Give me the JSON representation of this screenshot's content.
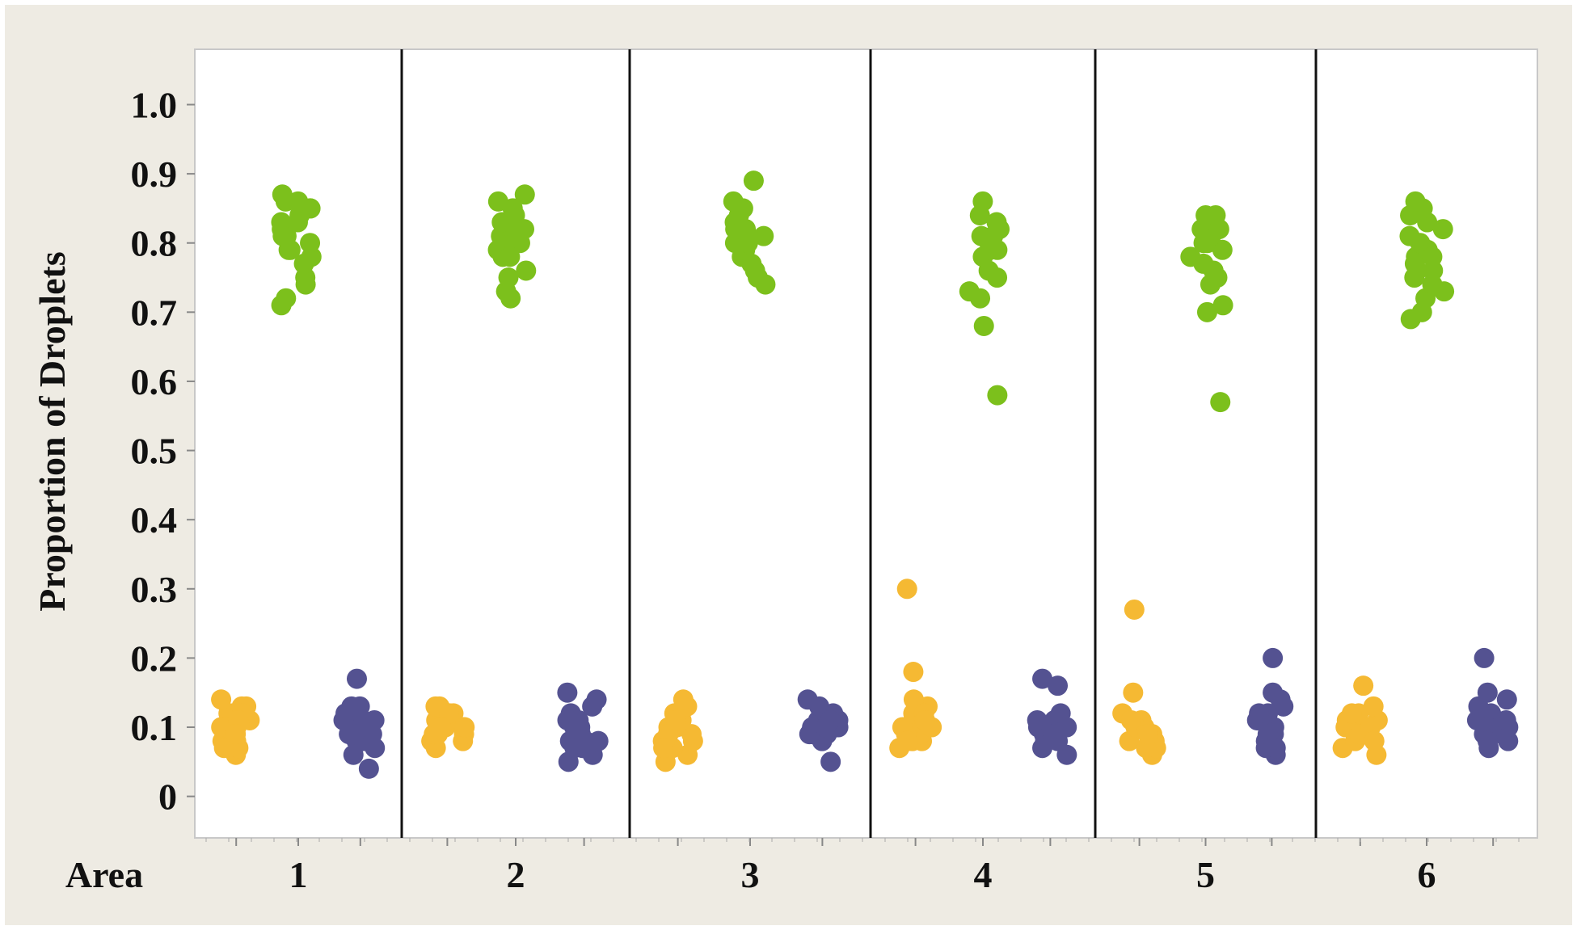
{
  "chart_data": {
    "type": "scatter",
    "title": "",
    "ylabel": "Proportion of Droplets",
    "xlabel": "Area",
    "ylim": [
      -0.06,
      1.08
    ],
    "yticks": [
      0,
      0.1,
      0.2,
      0.3,
      0.4,
      0.5,
      0.6,
      0.7,
      0.8,
      0.9,
      1.0
    ],
    "ytick_labels": [
      "0",
      "0.1",
      "0.2",
      "0.3",
      "0.4",
      "0.5",
      "0.6",
      "0.7",
      "0.8",
      "0.9",
      "1.0"
    ],
    "grid": false,
    "legend": "none",
    "categories": [
      "1",
      "2",
      "3",
      "4",
      "5",
      "6"
    ],
    "groups_per_category": 3,
    "series_colors": [
      "#f5b933",
      "#7cc01c",
      "#545291"
    ],
    "series": [
      {
        "values": [
          [
            0.06,
            0.07,
            0.08,
            0.09,
            0.09,
            0.1,
            0.1,
            0.11,
            0.11,
            0.12,
            0.12,
            0.13,
            0.13,
            0.14,
            0.08,
            0.1,
            0.12,
            0.07,
            0.11,
            0.09
          ],
          [
            0.07,
            0.08,
            0.08,
            0.09,
            0.09,
            0.1,
            0.1,
            0.11,
            0.11,
            0.12,
            0.12,
            0.13,
            0.13,
            0.1,
            0.11,
            0.09,
            0.12,
            0.1
          ],
          [
            0.05,
            0.06,
            0.07,
            0.07,
            0.08,
            0.08,
            0.09,
            0.09,
            0.1,
            0.1,
            0.11,
            0.12,
            0.13,
            0.14,
            0.08,
            0.09,
            0.11,
            0.07
          ],
          [
            0.07,
            0.08,
            0.08,
            0.09,
            0.1,
            0.1,
            0.11,
            0.11,
            0.12,
            0.13,
            0.14,
            0.18,
            0.3,
            0.09,
            0.12,
            0.1,
            0.08,
            0.11
          ],
          [
            0.06,
            0.07,
            0.08,
            0.09,
            0.09,
            0.1,
            0.11,
            0.12,
            0.15,
            0.27,
            0.08,
            0.1,
            0.07,
            0.09,
            0.11
          ],
          [
            0.06,
            0.07,
            0.08,
            0.09,
            0.1,
            0.1,
            0.11,
            0.12,
            0.13,
            0.16,
            0.09,
            0.11,
            0.1,
            0.08,
            0.12
          ]
        ]
      },
      {
        "values": [
          [
            0.71,
            0.72,
            0.74,
            0.75,
            0.77,
            0.78,
            0.79,
            0.8,
            0.81,
            0.82,
            0.82,
            0.83,
            0.84,
            0.85,
            0.85,
            0.86,
            0.86,
            0.87,
            0.79,
            0.83,
            0.81
          ],
          [
            0.72,
            0.73,
            0.75,
            0.76,
            0.78,
            0.79,
            0.79,
            0.8,
            0.81,
            0.82,
            0.83,
            0.84,
            0.85,
            0.86,
            0.87,
            0.8,
            0.82,
            0.78
          ],
          [
            0.74,
            0.75,
            0.76,
            0.78,
            0.79,
            0.8,
            0.81,
            0.82,
            0.83,
            0.84,
            0.85,
            0.86,
            0.89,
            0.8,
            0.82,
            0.77
          ],
          [
            0.58,
            0.68,
            0.72,
            0.73,
            0.75,
            0.76,
            0.78,
            0.79,
            0.8,
            0.81,
            0.82,
            0.83,
            0.84,
            0.86,
            0.79,
            0.81
          ],
          [
            0.57,
            0.7,
            0.71,
            0.74,
            0.75,
            0.77,
            0.78,
            0.79,
            0.8,
            0.81,
            0.82,
            0.83,
            0.84,
            0.84,
            0.8,
            0.82,
            0.76
          ],
          [
            0.69,
            0.7,
            0.72,
            0.73,
            0.74,
            0.75,
            0.76,
            0.77,
            0.78,
            0.79,
            0.8,
            0.81,
            0.82,
            0.83,
            0.84,
            0.85,
            0.86,
            0.78,
            0.76
          ]
        ]
      },
      {
        "values": [
          [
            0.04,
            0.06,
            0.07,
            0.08,
            0.08,
            0.09,
            0.09,
            0.1,
            0.1,
            0.11,
            0.11,
            0.12,
            0.12,
            0.13,
            0.13,
            0.17,
            0.1,
            0.09,
            0.11
          ],
          [
            0.05,
            0.06,
            0.07,
            0.07,
            0.08,
            0.08,
            0.09,
            0.1,
            0.1,
            0.11,
            0.12,
            0.13,
            0.14,
            0.15,
            0.08,
            0.09,
            0.11,
            0.07
          ],
          [
            0.05,
            0.08,
            0.09,
            0.09,
            0.1,
            0.1,
            0.11,
            0.11,
            0.12,
            0.13,
            0.14,
            0.1,
            0.09,
            0.11,
            0.1
          ],
          [
            0.06,
            0.07,
            0.08,
            0.09,
            0.1,
            0.1,
            0.11,
            0.12,
            0.16,
            0.17,
            0.09,
            0.11,
            0.08,
            0.1
          ],
          [
            0.06,
            0.07,
            0.08,
            0.09,
            0.1,
            0.11,
            0.12,
            0.13,
            0.14,
            0.15,
            0.2,
            0.07,
            0.09,
            0.11,
            0.12
          ],
          [
            0.07,
            0.08,
            0.09,
            0.1,
            0.1,
            0.11,
            0.12,
            0.13,
            0.14,
            0.15,
            0.2,
            0.09,
            0.11,
            0.1,
            0.08
          ]
        ]
      }
    ]
  }
}
